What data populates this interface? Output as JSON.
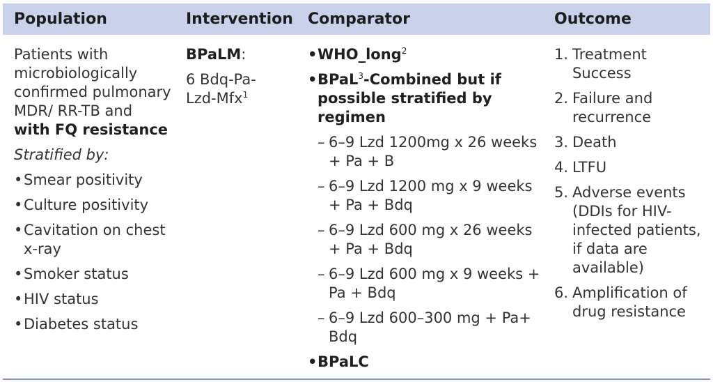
{
  "headers": {
    "population": "Population",
    "intervention": "Intervention",
    "comparator": "Comparator",
    "outcome": "Outcome"
  },
  "population": {
    "intro": "Patients with microbiologically confirmed pulmonary MDR/ RR-TB and ",
    "intro_bold": "with FQ resistance",
    "stratified_label": "Stratified by:",
    "strata": [
      "Smear positivity",
      "Culture positivity",
      "Cavitation on chest x-ray",
      "Smoker status",
      "HIV status",
      "Diabetes status"
    ]
  },
  "intervention": {
    "name": "BPaLM",
    "colon": ":",
    "regimen": "6 Bdq-Pa-Lzd-Mfx",
    "footnote": "1"
  },
  "comparator": {
    "who_long": "WHO_long",
    "who_long_footnote": "2",
    "bpal_name": "BPaL",
    "bpal_footnote": "3",
    "bpal_text": "-Combined but if possible stratified by regimen",
    "sub_regimens": [
      "6–9 Lzd 1200mg x 26 weeks + Pa + B",
      "6–9 Lzd 1200 mg x 9 weeks + Pa + Bdq",
      "6–9 Lzd 600 mg x 26 weeks + Pa + Bdq",
      "6–9 Lzd 600 mg x 9 weeks + Pa + Bdq",
      "6–9 Lzd 600–300 mg + Pa+ Bdq"
    ],
    "bpalc": "BPaLC"
  },
  "outcome": {
    "items": [
      {
        "num": "1.",
        "text": "Treatment Success"
      },
      {
        "num": "2.",
        "text": "Failure and recurrence"
      },
      {
        "num": "3.",
        "text": "Death"
      },
      {
        "num": "4.",
        "text": "LTFU"
      },
      {
        "num": "5.",
        "text": "Adverse events (DDIs for HIV-infected patients, if data are available)"
      },
      {
        "num": "6.",
        "text": "Amplification of drug resistance"
      }
    ]
  }
}
